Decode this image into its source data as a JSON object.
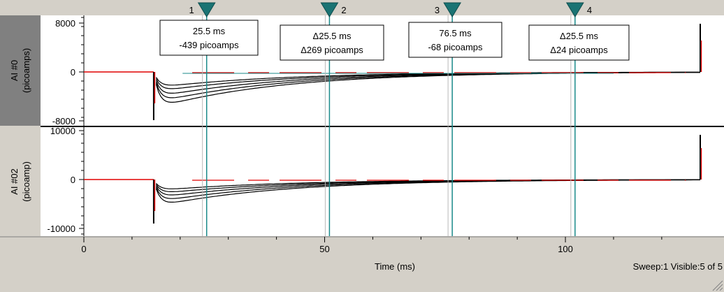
{
  "panels": [
    {
      "label_line1": "AI #0",
      "label_line2": "(picoamps)",
      "y_ticks": [
        "8000",
        "0",
        "-8000"
      ],
      "y_tick_values": [
        8000,
        0,
        -8000
      ],
      "ylim": [
        -9000,
        9500
      ]
    },
    {
      "label_line1": "AI #02",
      "label_line2": "(picoamp)",
      "y_ticks": [
        "10000",
        "0",
        "-10000"
      ],
      "y_tick_values": [
        10000,
        0,
        -10000
      ],
      "ylim": [
        -11000,
        12000
      ]
    }
  ],
  "x_axis": {
    "label": "Time (ms)",
    "tick_labels": [
      "0",
      "50",
      "100"
    ],
    "tick_values": [
      0,
      50,
      100
    ],
    "xlim": [
      0,
      128
    ]
  },
  "cursors": [
    {
      "number": "1",
      "x": 25.5,
      "color": "#000000"
    },
    {
      "number": "2",
      "x": 51.0,
      "color": "#000000"
    },
    {
      "number": "3",
      "x": 76.5,
      "color": "#000000"
    },
    {
      "number": "4",
      "x": 102.0,
      "color": "#e00000"
    }
  ],
  "annotations": [
    {
      "line1": "25.5 ms",
      "line2": "-439 picoamps"
    },
    {
      "line1": "Δ25.5 ms",
      "line2": "Δ269 picoamps"
    },
    {
      "line1": "76.5 ms",
      "line2": "-68 picoamps"
    },
    {
      "line1": "Δ25.5 ms",
      "line2": "Δ24 picoamps"
    }
  ],
  "status": "Sweep:1 Visible:5 of 5",
  "colors": {
    "cursor_line": "#1a8a8a",
    "cursor_marker": "#1a7373",
    "trace_black": "#000000",
    "trace_red": "#e00000",
    "baseline_teal": "#1a8a8a"
  },
  "chart_data": {
    "type": "line",
    "title": "",
    "xlabel": "Time (ms)",
    "ylabel": "",
    "stimulus_time_ms": 14.5,
    "end_artifact_ms": 128,
    "sweeps_visible": 5,
    "series": [
      {
        "panel": 0,
        "peak": -2600,
        "tau": 26
      },
      {
        "panel": 0,
        "peak": -3300,
        "tau": 26
      },
      {
        "panel": 0,
        "peak": -4200,
        "tau": 26
      },
      {
        "panel": 0,
        "peak": -5100,
        "tau": 26
      },
      {
        "panel": 0,
        "peak": -6000,
        "tau": 26
      },
      {
        "panel": 1,
        "peak": -2300,
        "tau": 26
      },
      {
        "panel": 1,
        "peak": -3000,
        "tau": 26
      },
      {
        "panel": 1,
        "peak": -3800,
        "tau": 26
      },
      {
        "panel": 1,
        "peak": -4700,
        "tau": 26
      },
      {
        "panel": 1,
        "peak": -5600,
        "tau": 26
      }
    ]
  }
}
